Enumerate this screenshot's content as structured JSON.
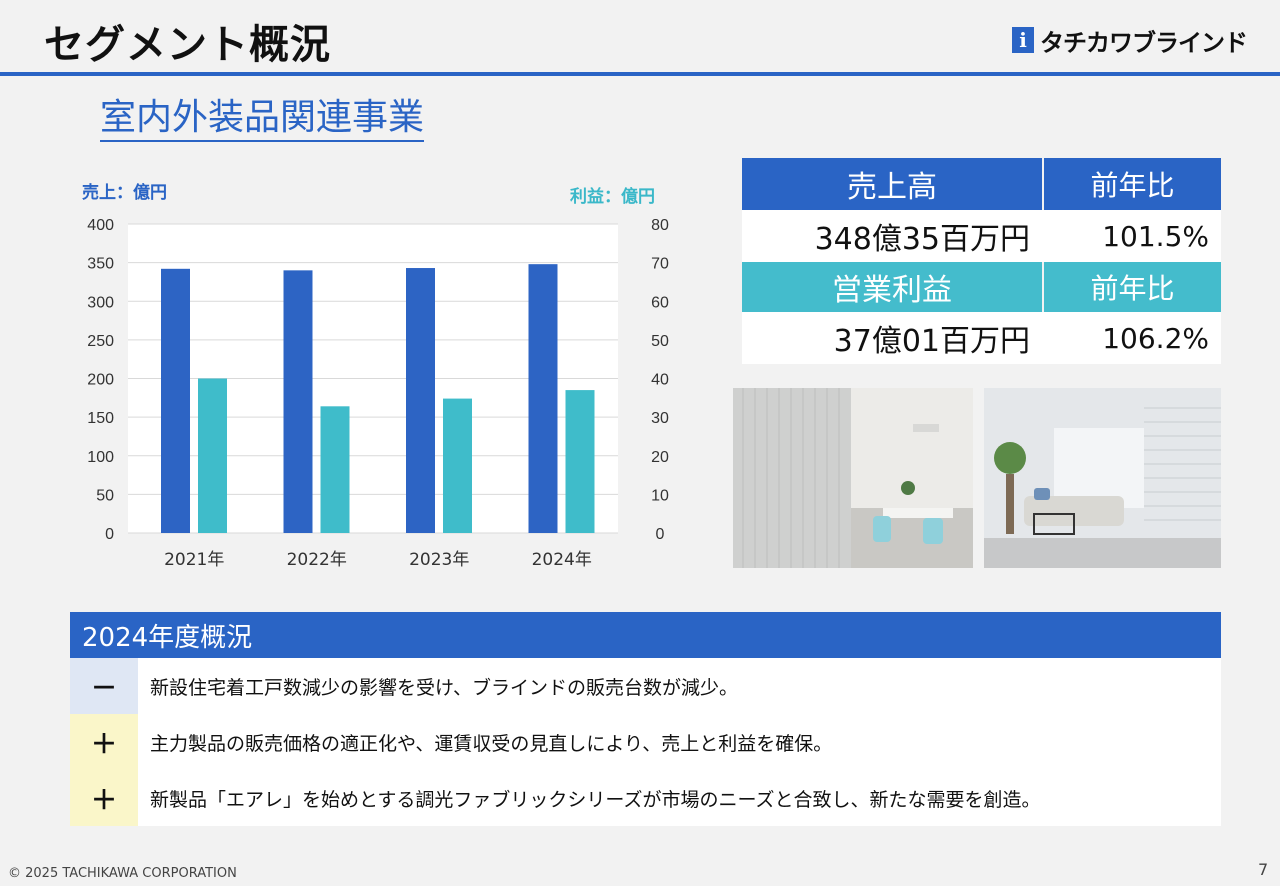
{
  "header": {
    "title": "セグメント概況",
    "logo_text": "タチカワブラインド",
    "logo_mark": "i"
  },
  "section_title": "室内外装品関連事業",
  "chart_data": {
    "type": "bar",
    "categories": [
      "2021年",
      "2022年",
      "2023年",
      "2024年"
    ],
    "series": [
      {
        "name": "売上",
        "axis": "left",
        "color": "#2d64c4",
        "values": [
          342,
          340,
          343,
          348
        ]
      },
      {
        "name": "利益",
        "axis": "right",
        "color": "#3fbcca",
        "values": [
          40,
          32.8,
          34.8,
          37
        ]
      }
    ],
    "left_axis_label": "売上：億円",
    "right_axis_label": "利益：億円",
    "left_ylim": [
      0,
      400
    ],
    "right_ylim": [
      0,
      80
    ],
    "left_ticks": [
      "400",
      "350",
      "300",
      "250",
      "200",
      "150",
      "100",
      "50",
      "0"
    ],
    "right_ticks": [
      "80",
      "70",
      "60",
      "50",
      "40",
      "30",
      "20",
      "10",
      "0"
    ],
    "grid": true,
    "legend": "none"
  },
  "kpi": {
    "sales": {
      "label": "売上高",
      "compare_label": "前年比",
      "value": "348億35百万円",
      "ratio": "101.5%"
    },
    "profit": {
      "label": "営業利益",
      "compare_label": "前年比",
      "value": "37億01百万円",
      "ratio": "106.2%"
    }
  },
  "summary": {
    "title": "2024年度概況",
    "rows": [
      {
        "sign": "－",
        "kind": "minus",
        "text": "新設住宅着工戸数減少の影響を受け、ブラインドの販売台数が減少。"
      },
      {
        "sign": "＋",
        "kind": "plus",
        "text": "主力製品の販売価格の適正化や、運賃収受の見直しにより、売上と利益を確保。"
      },
      {
        "sign": "＋",
        "kind": "plus",
        "text": "新製品「エアレ」を始めとする調光ファブリックシリーズが市場のニーズと合致し、新たな需要を創造。"
      }
    ]
  },
  "footer": {
    "copyright": "© 2025 TACHIKAWA CORPORATION",
    "page_number": "7"
  },
  "colors": {
    "primary": "#2a64c5",
    "accent": "#44bccc"
  }
}
